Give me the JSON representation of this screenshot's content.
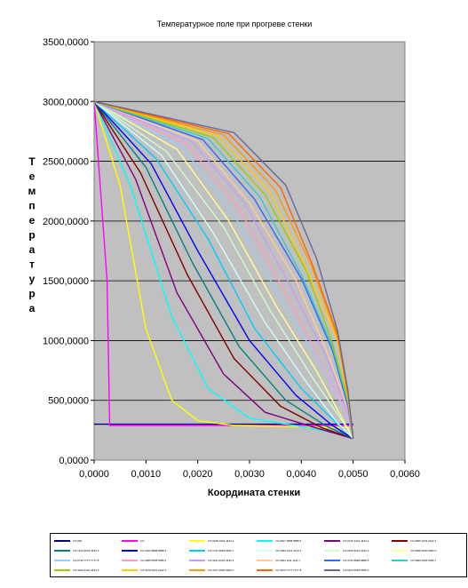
{
  "chart_data": {
    "type": "line",
    "title": "Температурное поле при прогреве стенки",
    "xlabel": "Координата стенки",
    "ylabel": "Температура",
    "xlim": [
      0,
      0.006
    ],
    "ylim": [
      0,
      3500
    ],
    "x_ticks": [
      "0,0000",
      "0,0010",
      "0,0020",
      "0,0030",
      "0,0040",
      "0,0050",
      "0,0060"
    ],
    "y_ticks": [
      "0,0000",
      "500,0000",
      "1000,0000",
      "1500,0000",
      "2000,0000",
      "2500,0000",
      "3000,0000",
      "3500,0000"
    ],
    "grid": "horizontal",
    "plot_background": "#c0c0c0",
    "legend_position": "bottom",
    "series": [
      {
        "name": "t=0.000",
        "color": "#000080",
        "points": [
          [
            0,
            300
          ],
          [
            0.005,
            300
          ]
        ]
      },
      {
        "name": "t=0",
        "color": "#ff00ff",
        "points": [
          [
            0,
            3000
          ],
          [
            0.00025,
            1500
          ],
          [
            0.0003,
            290
          ],
          [
            0.005,
            290
          ]
        ]
      },
      {
        "name": "t=0.0248 1944 4444 4",
        "color": "#ffff00",
        "points": [
          [
            0,
            3000
          ],
          [
            0.0005,
            2300
          ],
          [
            0.001,
            1100
          ],
          [
            0.0015,
            500
          ],
          [
            0.002,
            330
          ],
          [
            0.0027,
            290
          ],
          [
            0.005,
            270
          ]
        ]
      },
      {
        "name": "t=0.0497 3888 8888 9",
        "color": "#00ffff",
        "points": [
          [
            0,
            3000
          ],
          [
            0.0007,
            2300
          ],
          [
            0.0015,
            1200
          ],
          [
            0.0022,
            600
          ],
          [
            0.003,
            350
          ],
          [
            0.004,
            280
          ],
          [
            0.005,
            200
          ]
        ]
      },
      {
        "name": "t=0.0746 4444 4444 4",
        "color": "#800080",
        "points": [
          [
            0,
            3000
          ],
          [
            0.0008,
            2350
          ],
          [
            0.0016,
            1400
          ],
          [
            0.0025,
            720
          ],
          [
            0.0033,
            400
          ],
          [
            0.0042,
            280
          ],
          [
            0.005,
            180
          ]
        ]
      },
      {
        "name": "t=0.0995 2222 2222 2",
        "color": "#800000",
        "points": [
          [
            0,
            3000
          ],
          [
            0.0009,
            2400
          ],
          [
            0.0018,
            1550
          ],
          [
            0.0027,
            850
          ],
          [
            0.0036,
            450
          ],
          [
            0.0044,
            270
          ],
          [
            0.005,
            180
          ]
        ]
      },
      {
        "name": "t=0.1243 9333 3333 3",
        "color": "#008080",
        "points": [
          [
            0,
            3000
          ],
          [
            0.001,
            2450
          ],
          [
            0.0019,
            1650
          ],
          [
            0.0028,
            950
          ],
          [
            0.0037,
            500
          ],
          [
            0.0045,
            280
          ],
          [
            0.005,
            180
          ]
        ]
      },
      {
        "name": "t=0.1492 8888 8888 9",
        "color": "#0000ff",
        "points": [
          [
            0,
            3000
          ],
          [
            0.0011,
            2480
          ],
          [
            0.002,
            1750
          ],
          [
            0.003,
            1000
          ],
          [
            0.0039,
            540
          ],
          [
            0.0046,
            290
          ],
          [
            0.005,
            180
          ]
        ]
      },
      {
        "name": "t=0.1741 6666 6666 7",
        "color": "#00ccff",
        "points": [
          [
            0,
            3000
          ],
          [
            0.0012,
            2520
          ],
          [
            0.0022,
            1850
          ],
          [
            0.0031,
            1100
          ],
          [
            0.004,
            600
          ],
          [
            0.0047,
            300
          ],
          [
            0.005,
            180
          ]
        ]
      },
      {
        "name": "t=0.1990 4444 4444 4",
        "color": "#ccffff",
        "points": [
          [
            0,
            3000
          ],
          [
            0.0013,
            2550
          ],
          [
            0.0023,
            1900
          ],
          [
            0.0033,
            1150
          ],
          [
            0.0041,
            650
          ],
          [
            0.0047,
            310
          ],
          [
            0.005,
            180
          ]
        ]
      },
      {
        "name": "t=0.2239 2222 2222 2",
        "color": "#ccffcc",
        "points": [
          [
            0,
            3000
          ],
          [
            0.0014,
            2580
          ],
          [
            0.0025,
            1950
          ],
          [
            0.0034,
            1250
          ],
          [
            0.0042,
            700
          ],
          [
            0.0048,
            320
          ],
          [
            0.005,
            180
          ]
        ]
      },
      {
        "name": "t=0.2488 0000 0000 0",
        "color": "#ffff99",
        "points": [
          [
            0,
            3000
          ],
          [
            0.0016,
            2600
          ],
          [
            0.0026,
            2000
          ],
          [
            0.0035,
            1300
          ],
          [
            0.0043,
            740
          ],
          [
            0.0048,
            340
          ],
          [
            0.005,
            180
          ]
        ]
      },
      {
        "name": "t=0.2736 7777 7777 8",
        "color": "#99ccff",
        "points": [
          [
            0,
            3000
          ],
          [
            0.0017,
            2620
          ],
          [
            0.0027,
            2050
          ],
          [
            0.0036,
            1350
          ],
          [
            0.0044,
            780
          ],
          [
            0.0049,
            360
          ],
          [
            0.005,
            180
          ]
        ]
      },
      {
        "name": "t=0.2985 5555 5555 6",
        "color": "#ff99cc",
        "points": [
          [
            0,
            3000
          ],
          [
            0.0018,
            2640
          ],
          [
            0.0028,
            2100
          ],
          [
            0.0037,
            1400
          ],
          [
            0.0044,
            800
          ],
          [
            0.0049,
            380
          ],
          [
            0.005,
            180
          ]
        ]
      },
      {
        "name": "t=0.3234 3333 3333 3",
        "color": "#cc99ff",
        "points": [
          [
            0,
            3000
          ],
          [
            0.0019,
            2660
          ],
          [
            0.0029,
            2150
          ],
          [
            0.0038,
            1450
          ],
          [
            0.0045,
            850
          ],
          [
            0.0049,
            400
          ],
          [
            0.005,
            180
          ]
        ]
      },
      {
        "name": "t=0.3483 1111 1111 1",
        "color": "#ffcc99",
        "points": [
          [
            0,
            3000
          ],
          [
            0.002,
            2670
          ],
          [
            0.003,
            2150
          ],
          [
            0.0039,
            1500
          ],
          [
            0.0045,
            900
          ],
          [
            0.0049,
            430
          ],
          [
            0.005,
            180
          ]
        ]
      },
      {
        "name": "t=0.3731 8888 8888 9",
        "color": "#3366ff",
        "points": [
          [
            0,
            3000
          ],
          [
            0.0021,
            2680
          ],
          [
            0.0031,
            2180
          ],
          [
            0.004,
            1520
          ],
          [
            0.0046,
            920
          ],
          [
            0.0049,
            450
          ],
          [
            0.005,
            180
          ]
        ]
      },
      {
        "name": "t=0.3980 6666 6666 7",
        "color": "#33cccc",
        "points": [
          [
            0,
            3000
          ],
          [
            0.0022,
            2690
          ],
          [
            0.0032,
            2200
          ],
          [
            0.004,
            1550
          ],
          [
            0.0046,
            950
          ],
          [
            0.0049,
            480
          ],
          [
            0.005,
            180
          ]
        ]
      },
      {
        "name": "t=0.4229 4444 4444 4",
        "color": "#99cc00",
        "points": [
          [
            0,
            3000
          ],
          [
            0.0023,
            2700
          ],
          [
            0.0033,
            2220
          ],
          [
            0.0041,
            1580
          ],
          [
            0.0046,
            980
          ],
          [
            0.0049,
            500
          ],
          [
            0.005,
            180
          ]
        ]
      },
      {
        "name": "t=0.4478 2222 2222 2",
        "color": "#ffcc00",
        "points": [
          [
            0,
            3000
          ],
          [
            0.0024,
            2710
          ],
          [
            0.0034,
            2240
          ],
          [
            0.0041,
            1600
          ],
          [
            0.0047,
            1000
          ],
          [
            0.0049,
            520
          ],
          [
            0.005,
            180
          ]
        ]
      },
      {
        "name": "t=0.4727 0000 0000 0",
        "color": "#ff9900",
        "points": [
          [
            0,
            3000
          ],
          [
            0.0025,
            2720
          ],
          [
            0.0035,
            2260
          ],
          [
            0.0042,
            1620
          ],
          [
            0.0047,
            1020
          ],
          [
            0.0049,
            540
          ],
          [
            0.005,
            180
          ]
        ]
      },
      {
        "name": "t=0.4975 7777 7777 8",
        "color": "#ff6600",
        "points": [
          [
            0,
            3000
          ],
          [
            0.0026,
            2730
          ],
          [
            0.0036,
            2280
          ],
          [
            0.0042,
            1650
          ],
          [
            0.0047,
            1050
          ],
          [
            0.0049,
            560
          ],
          [
            0.005,
            180
          ]
        ]
      },
      {
        "name": "t=0.5224 5555 5555 6",
        "color": "#666699",
        "points": [
          [
            0,
            3000
          ],
          [
            0.0027,
            2740
          ],
          [
            0.0037,
            2300
          ],
          [
            0.0043,
            1680
          ],
          [
            0.0047,
            1080
          ],
          [
            0.0049,
            580
          ],
          [
            0.005,
            180
          ]
        ]
      }
    ]
  }
}
